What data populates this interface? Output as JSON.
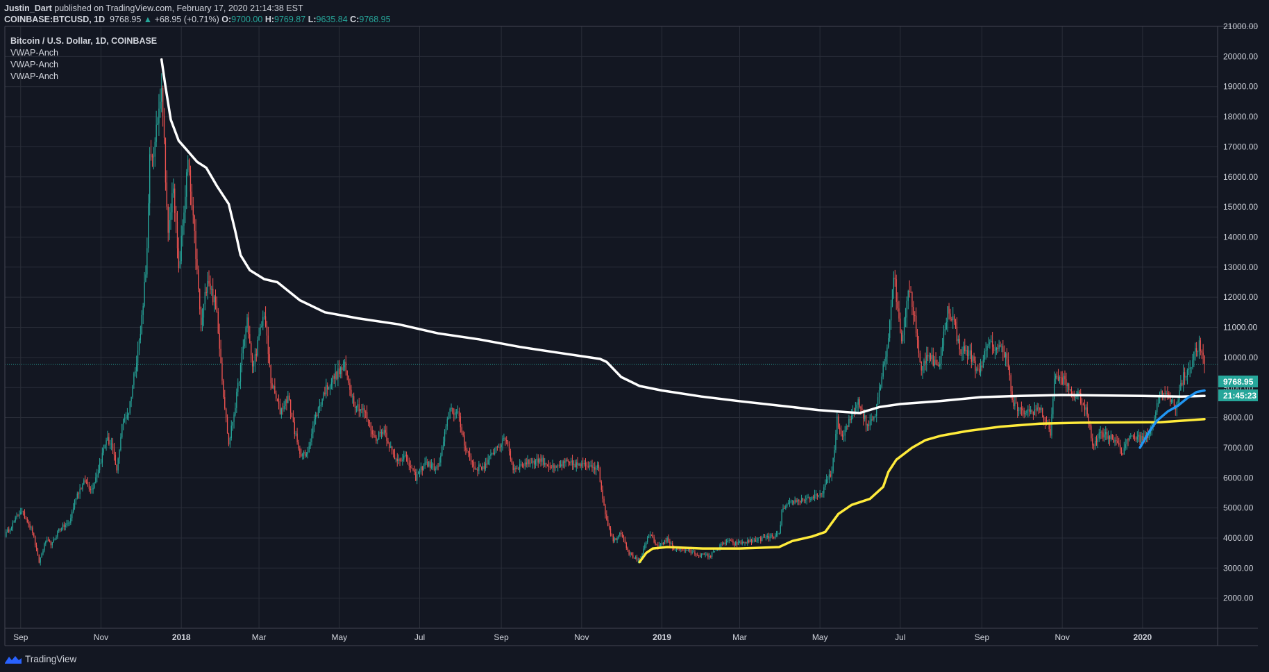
{
  "header": {
    "author": "Justin_Dart",
    "published_text": "published on TradingView.com, February 17, 2020 21:14:38 EST",
    "symbol": "COINBASE:BTCUSD, 1D",
    "last": "9768.95",
    "change_arrow": "▲",
    "change": "+68.95 (+0.71%)",
    "o_label": "O:",
    "o_value": "9700.00",
    "h_label": "H:",
    "h_value": "9769.87",
    "l_label": "L:",
    "l_value": "9635.84",
    "c_label": "C:",
    "c_value": "9768.95"
  },
  "legend": {
    "title": "Bitcoin / U.S. Dollar, 1D, COINBASE",
    "studies": [
      "VWAP-Anch",
      "VWAP-Anch",
      "VWAP-Anch"
    ]
  },
  "price_tag": {
    "price": "9768.95",
    "countdown": "21:45:23"
  },
  "brand": {
    "name": "TradingView"
  },
  "colors": {
    "background": "#131722",
    "grid": "#2a2e39",
    "up": "#26a69a",
    "down": "#ef5350",
    "vwap_white": "#ffffff",
    "vwap_yellow": "#ffeb3b",
    "vwap_blue": "#2196f3",
    "brand_icon": "#2962ff"
  },
  "chart_data": {
    "type": "candlestick",
    "ylim": [
      1000,
      21000
    ],
    "y_ticks": [
      2000,
      3000,
      4000,
      5000,
      6000,
      7000,
      8000,
      9000,
      10000,
      11000,
      12000,
      13000,
      14000,
      15000,
      16000,
      17000,
      18000,
      19000,
      20000,
      21000
    ],
    "x_range": [
      "2017-08-20",
      "2020-02-27"
    ],
    "x_ticks": [
      {
        "label": "Sep",
        "date": "2017-09-01"
      },
      {
        "label": "Nov",
        "date": "2017-11-01"
      },
      {
        "label": "2018",
        "date": "2018-01-01"
      },
      {
        "label": "Mar",
        "date": "2018-03-01"
      },
      {
        "label": "May",
        "date": "2018-05-01"
      },
      {
        "label": "Jul",
        "date": "2018-07-01"
      },
      {
        "label": "Sep",
        "date": "2018-09-01"
      },
      {
        "label": "Nov",
        "date": "2018-11-01"
      },
      {
        "label": "2019",
        "date": "2019-01-01"
      },
      {
        "label": "Mar",
        "date": "2019-03-01"
      },
      {
        "label": "May",
        "date": "2019-05-01"
      },
      {
        "label": "Jul",
        "date": "2019-07-01"
      },
      {
        "label": "Sep",
        "date": "2019-09-01"
      },
      {
        "label": "Nov",
        "date": "2019-11-01"
      },
      {
        "label": "2020",
        "date": "2020-01-01"
      }
    ],
    "price_path": [
      [
        "2017-08-20",
        4100
      ],
      [
        "2017-08-25",
        4400
      ],
      [
        "2017-09-01",
        4900
      ],
      [
        "2017-09-06",
        4600
      ],
      [
        "2017-09-10",
        4200
      ],
      [
        "2017-09-15",
        3200
      ],
      [
        "2017-09-20",
        3900
      ],
      [
        "2017-09-25",
        3800
      ],
      [
        "2017-09-30",
        4300
      ],
      [
        "2017-10-08",
        4500
      ],
      [
        "2017-10-13",
        5400
      ],
      [
        "2017-10-20",
        5900
      ],
      [
        "2017-10-25",
        5600
      ],
      [
        "2017-11-01",
        6600
      ],
      [
        "2017-11-05",
        7300
      ],
      [
        "2017-11-09",
        7100
      ],
      [
        "2017-11-13",
        6200
      ],
      [
        "2017-11-17",
        7800
      ],
      [
        "2017-11-22",
        8200
      ],
      [
        "2017-11-27",
        9700
      ],
      [
        "2017-12-01",
        10800
      ],
      [
        "2017-12-06",
        13500
      ],
      [
        "2017-12-08",
        16500
      ],
      [
        "2017-12-12",
        17000
      ],
      [
        "2017-12-17",
        19200
      ],
      [
        "2017-12-22",
        14000
      ],
      [
        "2017-12-26",
        15800
      ],
      [
        "2017-12-30",
        12800
      ],
      [
        "2018-01-06",
        16500
      ],
      [
        "2018-01-11",
        14000
      ],
      [
        "2018-01-16",
        11000
      ],
      [
        "2018-01-21",
        12700
      ],
      [
        "2018-01-28",
        11500
      ],
      [
        "2018-02-02",
        8800
      ],
      [
        "2018-02-06",
        7100
      ],
      [
        "2018-02-12",
        8700
      ],
      [
        "2018-02-20",
        11300
      ],
      [
        "2018-02-24",
        9600
      ],
      [
        "2018-03-05",
        11500
      ],
      [
        "2018-03-10",
        9200
      ],
      [
        "2018-03-17",
        8200
      ],
      [
        "2018-03-23",
        8700
      ],
      [
        "2018-03-31",
        6900
      ],
      [
        "2018-04-06",
        6700
      ],
      [
        "2018-04-12",
        7900
      ],
      [
        "2018-04-20",
        8900
      ],
      [
        "2018-04-28",
        9400
      ],
      [
        "2018-05-05",
        9700
      ],
      [
        "2018-05-12",
        8500
      ],
      [
        "2018-05-20",
        8200
      ],
      [
        "2018-05-28",
        7300
      ],
      [
        "2018-06-04",
        7600
      ],
      [
        "2018-06-12",
        6600
      ],
      [
        "2018-06-20",
        6700
      ],
      [
        "2018-06-28",
        6000
      ],
      [
        "2018-07-05",
        6500
      ],
      [
        "2018-07-15",
        6300
      ],
      [
        "2018-07-24",
        8300
      ],
      [
        "2018-07-30",
        8100
      ],
      [
        "2018-08-05",
        7000
      ],
      [
        "2018-08-12",
        6300
      ],
      [
        "2018-08-20",
        6400
      ],
      [
        "2018-08-28",
        7000
      ],
      [
        "2018-09-05",
        7300
      ],
      [
        "2018-09-10",
        6300
      ],
      [
        "2018-09-20",
        6500
      ],
      [
        "2018-10-01",
        6600
      ],
      [
        "2018-10-11",
        6300
      ],
      [
        "2018-10-20",
        6500
      ],
      [
        "2018-11-01",
        6400
      ],
      [
        "2018-11-08",
        6450
      ],
      [
        "2018-11-14",
        6300
      ],
      [
        "2018-11-16",
        5600
      ],
      [
        "2018-11-20",
        4600
      ],
      [
        "2018-11-25",
        3900
      ],
      [
        "2018-12-01",
        4200
      ],
      [
        "2018-12-07",
        3500
      ],
      [
        "2018-12-15",
        3200
      ],
      [
        "2018-12-20",
        3900
      ],
      [
        "2018-12-24",
        4100
      ],
      [
        "2018-12-28",
        3700
      ],
      [
        "2019-01-05",
        3950
      ],
      [
        "2019-01-10",
        3650
      ],
      [
        "2019-01-20",
        3600
      ],
      [
        "2019-01-28",
        3450
      ],
      [
        "2019-02-07",
        3400
      ],
      [
        "2019-02-10",
        3600
      ],
      [
        "2019-02-20",
        3900
      ],
      [
        "2019-02-25",
        3800
      ],
      [
        "2019-03-10",
        3900
      ],
      [
        "2019-03-20",
        4000
      ],
      [
        "2019-03-31",
        4100
      ],
      [
        "2019-04-02",
        4900
      ],
      [
        "2019-04-10",
        5200
      ],
      [
        "2019-04-20",
        5300
      ],
      [
        "2019-05-01",
        5400
      ],
      [
        "2019-05-10",
        6200
      ],
      [
        "2019-05-14",
        7900
      ],
      [
        "2019-05-18",
        7300
      ],
      [
        "2019-05-30",
        8600
      ],
      [
        "2019-06-06",
        7700
      ],
      [
        "2019-06-12",
        8200
      ],
      [
        "2019-06-17",
        9400
      ],
      [
        "2019-06-22",
        10700
      ],
      [
        "2019-06-26",
        12800
      ],
      [
        "2019-06-29",
        11600
      ],
      [
        "2019-07-02",
        10600
      ],
      [
        "2019-07-08",
        12300
      ],
      [
        "2019-07-12",
        11300
      ],
      [
        "2019-07-17",
        9500
      ],
      [
        "2019-07-22",
        10200
      ],
      [
        "2019-07-30",
        9600
      ],
      [
        "2019-08-06",
        11600
      ],
      [
        "2019-08-10",
        11300
      ],
      [
        "2019-08-15",
        10300
      ],
      [
        "2019-08-23",
        10100
      ],
      [
        "2019-08-29",
        9500
      ],
      [
        "2019-09-06",
        10400
      ],
      [
        "2019-09-15",
        10300
      ],
      [
        "2019-09-20",
        10100
      ],
      [
        "2019-09-24",
        8500
      ],
      [
        "2019-09-30",
        8200
      ],
      [
        "2019-10-08",
        8200
      ],
      [
        "2019-10-15",
        8300
      ],
      [
        "2019-10-23",
        7500
      ],
      [
        "2019-10-26",
        9300
      ],
      [
        "2019-11-02",
        9250
      ],
      [
        "2019-11-08",
        8800
      ],
      [
        "2019-11-14",
        8700
      ],
      [
        "2019-11-20",
        8100
      ],
      [
        "2019-11-24",
        7100
      ],
      [
        "2019-11-30",
        7500
      ],
      [
        "2019-12-06",
        7400
      ],
      [
        "2019-12-13",
        7200
      ],
      [
        "2019-12-17",
        6800
      ],
      [
        "2019-12-22",
        7400
      ],
      [
        "2019-12-30",
        7300
      ],
      [
        "2020-01-05",
        7400
      ],
      [
        "2020-01-10",
        8000
      ],
      [
        "2020-01-14",
        8800
      ],
      [
        "2020-01-20",
        8700
      ],
      [
        "2020-01-26",
        8400
      ],
      [
        "2020-02-01",
        9350
      ],
      [
        "2020-02-06",
        9700
      ],
      [
        "2020-02-09",
        10100
      ],
      [
        "2020-02-13",
        10400
      ],
      [
        "2020-02-16",
        9900
      ],
      [
        "2020-02-17",
        9769
      ]
    ],
    "vwap_lines": [
      {
        "name": "VWAP-Anch",
        "color": "#ffffff",
        "points": [
          [
            "2017-12-17",
            19900
          ],
          [
            "2017-12-20",
            19000
          ],
          [
            "2017-12-24",
            17900
          ],
          [
            "2017-12-30",
            17200
          ],
          [
            "2018-01-05",
            16900
          ],
          [
            "2018-01-13",
            16500
          ],
          [
            "2018-01-20",
            16300
          ],
          [
            "2018-01-28",
            15700
          ],
          [
            "2018-02-06",
            15100
          ],
          [
            "2018-02-11",
            14200
          ],
          [
            "2018-02-15",
            13400
          ],
          [
            "2018-02-22",
            12900
          ],
          [
            "2018-03-05",
            12600
          ],
          [
            "2018-03-15",
            12500
          ],
          [
            "2018-04-01",
            11900
          ],
          [
            "2018-04-20",
            11500
          ],
          [
            "2018-05-15",
            11300
          ],
          [
            "2018-06-15",
            11100
          ],
          [
            "2018-07-15",
            10800
          ],
          [
            "2018-08-15",
            10600
          ],
          [
            "2018-09-15",
            10350
          ],
          [
            "2018-10-15",
            10150
          ],
          [
            "2018-11-15",
            9950
          ],
          [
            "2018-11-20",
            9850
          ],
          [
            "2018-12-01",
            9350
          ],
          [
            "2018-12-15",
            9050
          ],
          [
            "2019-01-01",
            8900
          ],
          [
            "2019-01-31",
            8700
          ],
          [
            "2019-02-28",
            8550
          ],
          [
            "2019-03-31",
            8400
          ],
          [
            "2019-04-30",
            8250
          ],
          [
            "2019-05-31",
            8150
          ],
          [
            "2019-06-15",
            8350
          ],
          [
            "2019-07-01",
            8450
          ],
          [
            "2019-07-31",
            8550
          ],
          [
            "2019-08-31",
            8680
          ],
          [
            "2019-09-30",
            8720
          ],
          [
            "2019-10-31",
            8750
          ],
          [
            "2019-12-31",
            8720
          ],
          [
            "2020-01-31",
            8700
          ],
          [
            "2020-02-17",
            8720
          ]
        ]
      },
      {
        "name": "VWAP-Anch",
        "color": "#ffeb3b",
        "points": [
          [
            "2018-12-15",
            3200
          ],
          [
            "2018-12-20",
            3500
          ],
          [
            "2018-12-25",
            3650
          ],
          [
            "2019-01-05",
            3700
          ],
          [
            "2019-02-01",
            3650
          ],
          [
            "2019-03-01",
            3650
          ],
          [
            "2019-03-31",
            3700
          ],
          [
            "2019-04-10",
            3900
          ],
          [
            "2019-04-25",
            4050
          ],
          [
            "2019-05-05",
            4200
          ],
          [
            "2019-05-15",
            4800
          ],
          [
            "2019-05-25",
            5100
          ],
          [
            "2019-06-08",
            5300
          ],
          [
            "2019-06-18",
            5700
          ],
          [
            "2019-06-22",
            6200
          ],
          [
            "2019-06-28",
            6600
          ],
          [
            "2019-07-10",
            7000
          ],
          [
            "2019-07-20",
            7250
          ],
          [
            "2019-08-01",
            7400
          ],
          [
            "2019-08-20",
            7550
          ],
          [
            "2019-09-15",
            7700
          ],
          [
            "2019-10-15",
            7800
          ],
          [
            "2019-11-15",
            7830
          ],
          [
            "2019-12-15",
            7840
          ],
          [
            "2020-01-15",
            7850
          ],
          [
            "2020-02-17",
            7950
          ]
        ]
      },
      {
        "name": "VWAP-Anch",
        "color": "#2196f3",
        "points": [
          [
            "2019-12-30",
            7000
          ],
          [
            "2020-01-03",
            7300
          ],
          [
            "2020-01-07",
            7600
          ],
          [
            "2020-01-12",
            7900
          ],
          [
            "2020-01-20",
            8200
          ],
          [
            "2020-01-28",
            8400
          ],
          [
            "2020-02-04",
            8650
          ],
          [
            "2020-02-11",
            8850
          ],
          [
            "2020-02-17",
            8900
          ]
        ]
      }
    ]
  }
}
